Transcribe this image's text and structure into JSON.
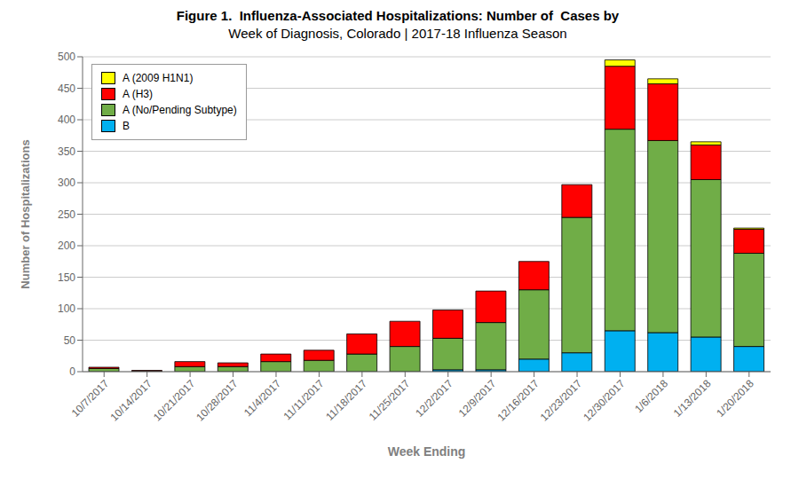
{
  "chart_data": {
    "type": "bar",
    "title": "Figure 1.  Influenza-Associated Hospitalizations: Number of  Cases by",
    "subtitle": "Week of Diagnosis, Colorado | 2017-18 Influenza Season",
    "xlabel": "Week Ending",
    "ylabel": "Number of Hospitalizations",
    "categories": [
      "10/7/2017",
      "10/14/2017",
      "10/21/2017",
      "10/28/2017",
      "11/4/2017",
      "11/11/2017",
      "11/18/2017",
      "11/25/2017",
      "12/2/2017",
      "12/9/2017",
      "12/16/2017",
      "12/23/2017",
      "12/30/2017",
      "1/6/2018",
      "1/13/2018",
      "1/20/2018"
    ],
    "series": [
      {
        "name": "B",
        "color": "#00B0F0",
        "values": [
          0,
          0,
          0,
          0,
          0,
          0,
          0,
          0,
          3,
          3,
          20,
          30,
          65,
          62,
          55,
          40
        ]
      },
      {
        "name": "A (No/Pending Subtype)",
        "color": "#70AD47",
        "values": [
          5,
          1,
          8,
          8,
          16,
          18,
          28,
          40,
          50,
          75,
          110,
          215,
          320,
          305,
          250,
          148
        ]
      },
      {
        "name": "A (H3)",
        "color": "#FF0000",
        "values": [
          2,
          1,
          8,
          6,
          12,
          16,
          32,
          40,
          45,
          50,
          45,
          52,
          100,
          90,
          55,
          38
        ]
      },
      {
        "name": "A (2009 H1N1)",
        "color": "#FFFF00",
        "values": [
          0,
          0,
          0,
          0,
          0,
          0,
          0,
          0,
          0,
          0,
          0,
          0,
          10,
          8,
          5,
          2
        ]
      }
    ],
    "ylim": [
      0,
      500
    ],
    "yticks": [
      0,
      50,
      100,
      150,
      200,
      250,
      300,
      350,
      400,
      450,
      500
    ],
    "stacked": true,
    "grid": true,
    "legend": "upper left"
  }
}
